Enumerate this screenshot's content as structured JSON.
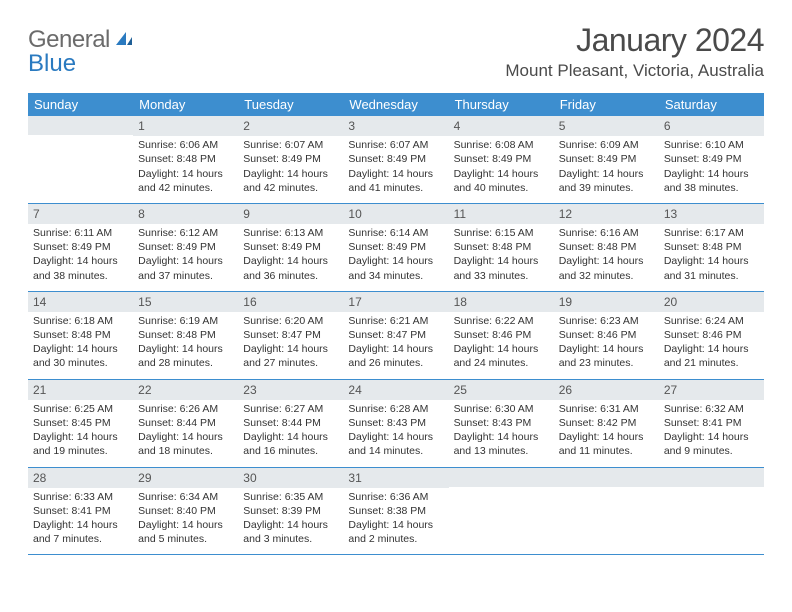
{
  "logo": {
    "word1": "General",
    "word2": "Blue"
  },
  "title": "January 2024",
  "location": "Mount Pleasant, Victoria, Australia",
  "colors": {
    "header_bg": "#3d8ecf",
    "header_text": "#ffffff",
    "daynum_bg": "#e5e9ec",
    "daynum_text": "#555555",
    "border": "#3d8ecf",
    "logo_gray": "#6b6b6b",
    "logo_blue": "#2a7ac0",
    "text": "#333333"
  },
  "daysOfWeek": [
    "Sunday",
    "Monday",
    "Tuesday",
    "Wednesday",
    "Thursday",
    "Friday",
    "Saturday"
  ],
  "weeks": [
    [
      {
        "n": "",
        "lines": []
      },
      {
        "n": "1",
        "lines": [
          "Sunrise: 6:06 AM",
          "Sunset: 8:48 PM",
          "Daylight: 14 hours and 42 minutes."
        ]
      },
      {
        "n": "2",
        "lines": [
          "Sunrise: 6:07 AM",
          "Sunset: 8:49 PM",
          "Daylight: 14 hours and 42 minutes."
        ]
      },
      {
        "n": "3",
        "lines": [
          "Sunrise: 6:07 AM",
          "Sunset: 8:49 PM",
          "Daylight: 14 hours and 41 minutes."
        ]
      },
      {
        "n": "4",
        "lines": [
          "Sunrise: 6:08 AM",
          "Sunset: 8:49 PM",
          "Daylight: 14 hours and 40 minutes."
        ]
      },
      {
        "n": "5",
        "lines": [
          "Sunrise: 6:09 AM",
          "Sunset: 8:49 PM",
          "Daylight: 14 hours and 39 minutes."
        ]
      },
      {
        "n": "6",
        "lines": [
          "Sunrise: 6:10 AM",
          "Sunset: 8:49 PM",
          "Daylight: 14 hours and 38 minutes."
        ]
      }
    ],
    [
      {
        "n": "7",
        "lines": [
          "Sunrise: 6:11 AM",
          "Sunset: 8:49 PM",
          "Daylight: 14 hours and 38 minutes."
        ]
      },
      {
        "n": "8",
        "lines": [
          "Sunrise: 6:12 AM",
          "Sunset: 8:49 PM",
          "Daylight: 14 hours and 37 minutes."
        ]
      },
      {
        "n": "9",
        "lines": [
          "Sunrise: 6:13 AM",
          "Sunset: 8:49 PM",
          "Daylight: 14 hours and 36 minutes."
        ]
      },
      {
        "n": "10",
        "lines": [
          "Sunrise: 6:14 AM",
          "Sunset: 8:49 PM",
          "Daylight: 14 hours and 34 minutes."
        ]
      },
      {
        "n": "11",
        "lines": [
          "Sunrise: 6:15 AM",
          "Sunset: 8:48 PM",
          "Daylight: 14 hours and 33 minutes."
        ]
      },
      {
        "n": "12",
        "lines": [
          "Sunrise: 6:16 AM",
          "Sunset: 8:48 PM",
          "Daylight: 14 hours and 32 minutes."
        ]
      },
      {
        "n": "13",
        "lines": [
          "Sunrise: 6:17 AM",
          "Sunset: 8:48 PM",
          "Daylight: 14 hours and 31 minutes."
        ]
      }
    ],
    [
      {
        "n": "14",
        "lines": [
          "Sunrise: 6:18 AM",
          "Sunset: 8:48 PM",
          "Daylight: 14 hours and 30 minutes."
        ]
      },
      {
        "n": "15",
        "lines": [
          "Sunrise: 6:19 AM",
          "Sunset: 8:48 PM",
          "Daylight: 14 hours and 28 minutes."
        ]
      },
      {
        "n": "16",
        "lines": [
          "Sunrise: 6:20 AM",
          "Sunset: 8:47 PM",
          "Daylight: 14 hours and 27 minutes."
        ]
      },
      {
        "n": "17",
        "lines": [
          "Sunrise: 6:21 AM",
          "Sunset: 8:47 PM",
          "Daylight: 14 hours and 26 minutes."
        ]
      },
      {
        "n": "18",
        "lines": [
          "Sunrise: 6:22 AM",
          "Sunset: 8:46 PM",
          "Daylight: 14 hours and 24 minutes."
        ]
      },
      {
        "n": "19",
        "lines": [
          "Sunrise: 6:23 AM",
          "Sunset: 8:46 PM",
          "Daylight: 14 hours and 23 minutes."
        ]
      },
      {
        "n": "20",
        "lines": [
          "Sunrise: 6:24 AM",
          "Sunset: 8:46 PM",
          "Daylight: 14 hours and 21 minutes."
        ]
      }
    ],
    [
      {
        "n": "21",
        "lines": [
          "Sunrise: 6:25 AM",
          "Sunset: 8:45 PM",
          "Daylight: 14 hours and 19 minutes."
        ]
      },
      {
        "n": "22",
        "lines": [
          "Sunrise: 6:26 AM",
          "Sunset: 8:44 PM",
          "Daylight: 14 hours and 18 minutes."
        ]
      },
      {
        "n": "23",
        "lines": [
          "Sunrise: 6:27 AM",
          "Sunset: 8:44 PM",
          "Daylight: 14 hours and 16 minutes."
        ]
      },
      {
        "n": "24",
        "lines": [
          "Sunrise: 6:28 AM",
          "Sunset: 8:43 PM",
          "Daylight: 14 hours and 14 minutes."
        ]
      },
      {
        "n": "25",
        "lines": [
          "Sunrise: 6:30 AM",
          "Sunset: 8:43 PM",
          "Daylight: 14 hours and 13 minutes."
        ]
      },
      {
        "n": "26",
        "lines": [
          "Sunrise: 6:31 AM",
          "Sunset: 8:42 PM",
          "Daylight: 14 hours and 11 minutes."
        ]
      },
      {
        "n": "27",
        "lines": [
          "Sunrise: 6:32 AM",
          "Sunset: 8:41 PM",
          "Daylight: 14 hours and 9 minutes."
        ]
      }
    ],
    [
      {
        "n": "28",
        "lines": [
          "Sunrise: 6:33 AM",
          "Sunset: 8:41 PM",
          "Daylight: 14 hours and 7 minutes."
        ]
      },
      {
        "n": "29",
        "lines": [
          "Sunrise: 6:34 AM",
          "Sunset: 8:40 PM",
          "Daylight: 14 hours and 5 minutes."
        ]
      },
      {
        "n": "30",
        "lines": [
          "Sunrise: 6:35 AM",
          "Sunset: 8:39 PM",
          "Daylight: 14 hours and 3 minutes."
        ]
      },
      {
        "n": "31",
        "lines": [
          "Sunrise: 6:36 AM",
          "Sunset: 8:38 PM",
          "Daylight: 14 hours and 2 minutes."
        ]
      },
      {
        "n": "",
        "lines": []
      },
      {
        "n": "",
        "lines": []
      },
      {
        "n": "",
        "lines": []
      }
    ]
  ]
}
